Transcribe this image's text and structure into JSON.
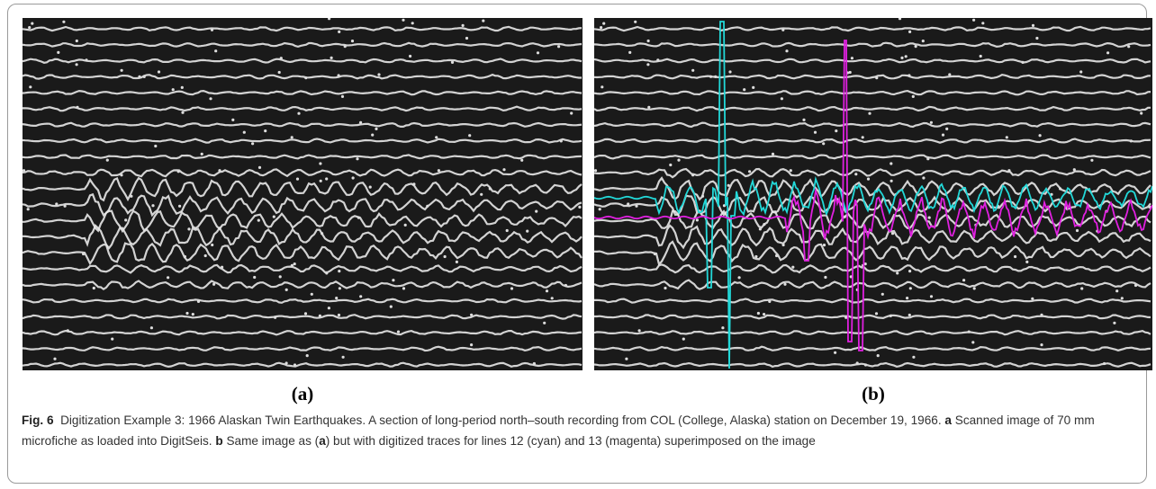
{
  "panels": [
    {
      "label": "(a)"
    },
    {
      "label": "(b)"
    }
  ],
  "caption": {
    "figure": "Fig. 6",
    "intro": "Digitization Example 3: 1966 Alaskan Twin Earthquakes. A section of long-period north–south recording from COL (College, Alaska) station on December 19, 1966.",
    "a_key": "a",
    "a_text": "Scanned image of 70 mm microfiche as loaded into DigitSeis.",
    "b_key": "b",
    "b_text_1": "Same image as (",
    "b_ref": "a",
    "b_text_2": ") but with digitized traces for lines 12 (cyan) and 13 (magenta) superimposed on the image"
  }
}
